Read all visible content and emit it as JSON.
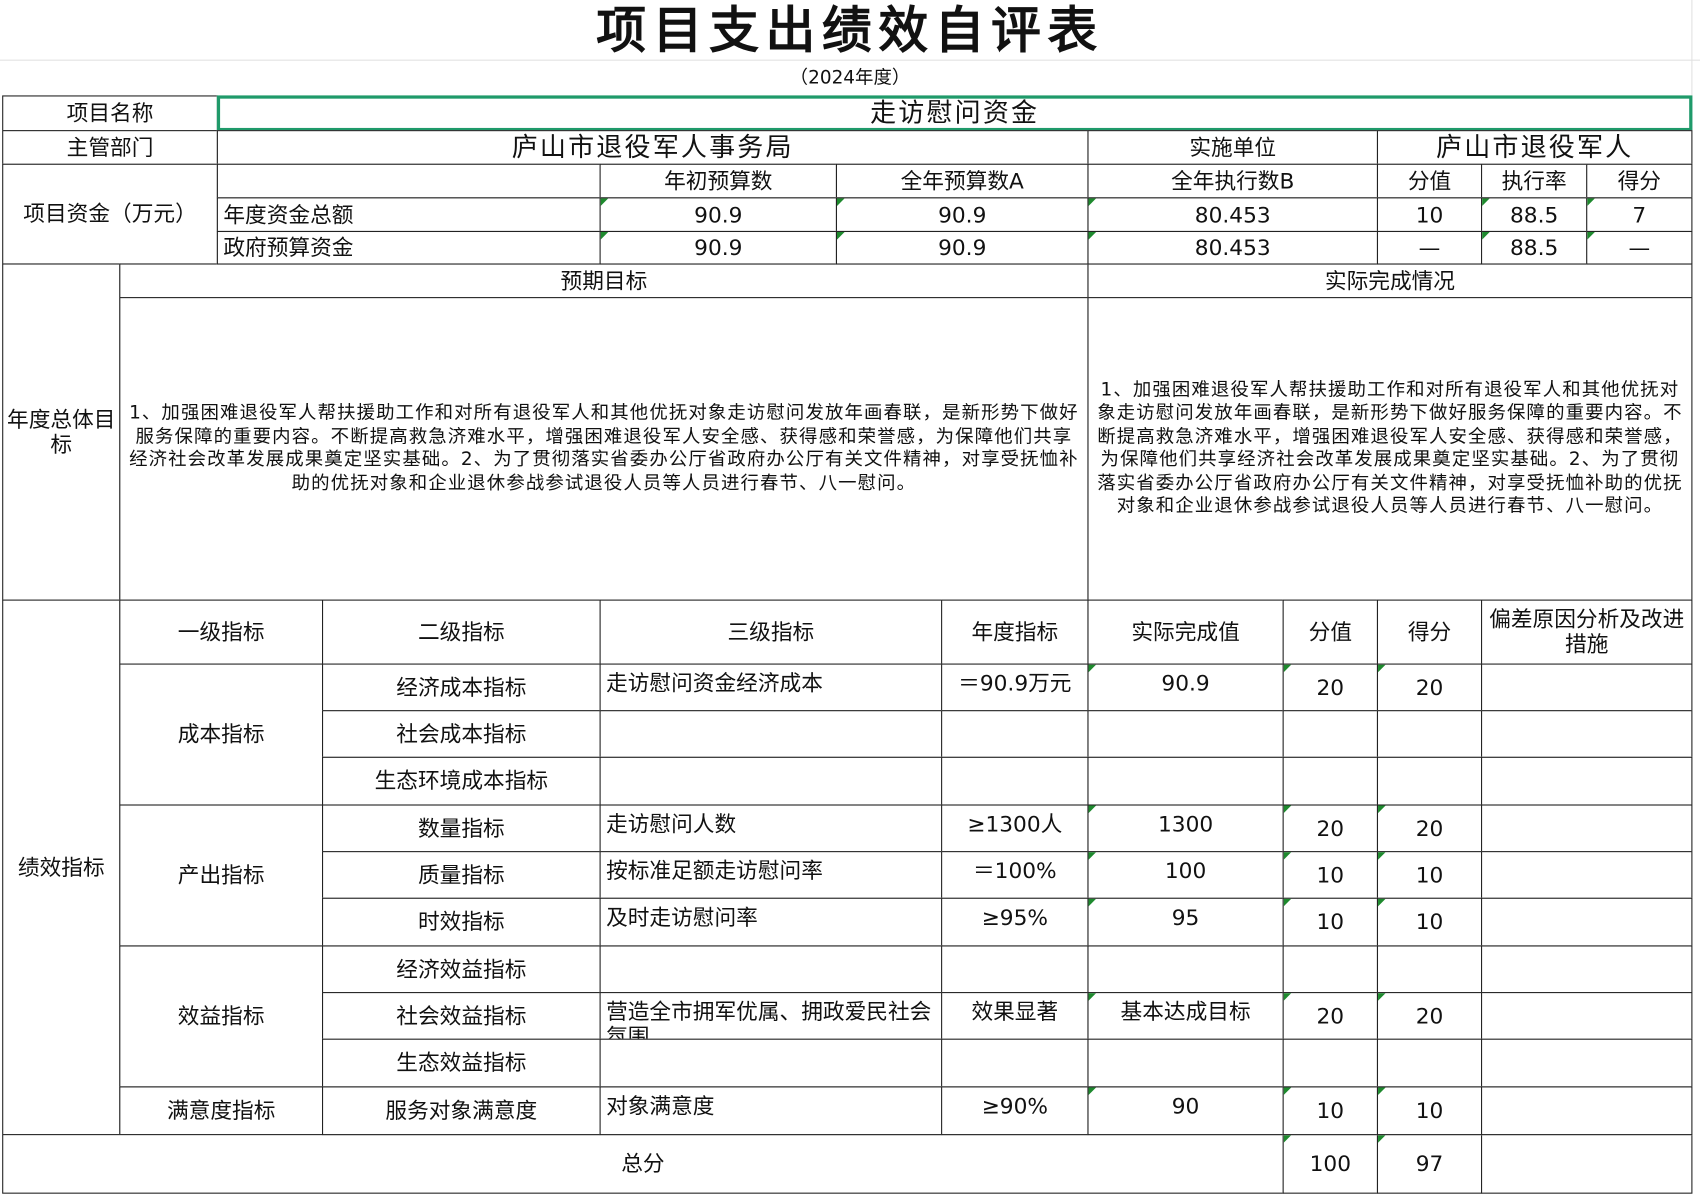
{
  "title": "项目支出绩效自评表",
  "subtitle": "（2024年度）",
  "project": {
    "name_label": "项目名称",
    "name": "走访慰问资金",
    "dept_label": "主管部门",
    "dept": "庐山市退役军人事务局",
    "impl_label": "实施单位",
    "impl": "庐山市退役军人"
  },
  "funds": {
    "label": "项目资金（万元）",
    "headers": [
      "年初预算数",
      "全年预算数A",
      "全年执行数B",
      "分值",
      "执行率",
      "得分"
    ],
    "rows": [
      {
        "name": "年度资金总额",
        "initial": "90.9",
        "annual": "90.9",
        "executed": "80.453",
        "weight": "10",
        "rate": "88.5",
        "score": "7"
      },
      {
        "name": "政府预算资金",
        "initial": "90.9",
        "annual": "90.9",
        "executed": "80.453",
        "weight": "—",
        "rate": "88.5",
        "score": "—"
      }
    ]
  },
  "goals": {
    "label": "年度总体目标",
    "expected_label": "预期目标",
    "actual_label": "实际完成情况",
    "expected": "1、加强困难退役军人帮扶援助工作和对所有退役军人和其他优抚对象走访慰问发放年画春联，是新形势下做好服务保障的重要内容。不断提高救急济难水平，增强困难退役军人安全感、获得感和荣誉感，为保障他们共享经济社会改革发展成果奠定坚实基础。2、为了贯彻落实省委办公厅省政府办公厅有关文件精神，对享受抚恤补助的优抚对象和企业退休参战参试退役人员等人员进行春节、八一慰问。",
    "actual": "1、加强困难退役军人帮扶援助工作和对所有退役军人和其他优抚对象走访慰问发放年画春联，是新形势下做好服务保障的重要内容。不断提高救急济难水平，增强困难退役军人安全感、获得感和荣誉感，为保障他们共享经济社会改革发展成果奠定坚实基础。2、为了贯彻落实省委办公厅省政府办公厅有关文件精神，对享受抚恤补助的优抚对象和企业退休参战参试退役人员等人员进行春节、八一慰问。"
  },
  "indicators": {
    "label": "绩效指标",
    "headers": [
      "一级指标",
      "二级指标",
      "三级指标",
      "年度指标",
      "实际完成值",
      "分值",
      "得分",
      "偏差原因分析及改进措施"
    ],
    "level1": [
      "成本指标",
      "产出指标",
      "效益指标",
      "满意度指标"
    ],
    "rows": [
      {
        "l2": "经济成本指标",
        "l3": "走访慰问资金经济成本",
        "target": "＝90.9万元",
        "actual": "90.9",
        "weight": "20",
        "score": "20",
        "note": ""
      },
      {
        "l2": "社会成本指标",
        "l3": "",
        "target": "",
        "actual": "",
        "weight": "",
        "score": "",
        "note": ""
      },
      {
        "l2": "生态环境成本指标",
        "l3": "",
        "target": "",
        "actual": "",
        "weight": "",
        "score": "",
        "note": ""
      },
      {
        "l2": "数量指标",
        "l3": "走访慰问人数",
        "target": "≥1300人",
        "actual": "1300",
        "weight": "20",
        "score": "20",
        "note": ""
      },
      {
        "l2": "质量指标",
        "l3": "按标准足额走访慰问率",
        "target": "＝100%",
        "actual": "100",
        "weight": "10",
        "score": "10",
        "note": ""
      },
      {
        "l2": "时效指标",
        "l3": "及时走访慰问率",
        "target": "≥95%",
        "actual": "95",
        "weight": "10",
        "score": "10",
        "note": ""
      },
      {
        "l2": "经济效益指标",
        "l3": "",
        "target": "",
        "actual": "",
        "weight": "",
        "score": "",
        "note": ""
      },
      {
        "l2": "社会效益指标",
        "l3": "营造全市拥军优属、拥政爱民社会氛围",
        "target": "效果显著",
        "actual": "基本达成目标",
        "weight": "20",
        "score": "20",
        "note": ""
      },
      {
        "l2": "生态效益指标",
        "l3": "",
        "target": "",
        "actual": "",
        "weight": "",
        "score": "",
        "note": ""
      },
      {
        "l2": "服务对象满意度",
        "l3": "对象满意度",
        "target": "≥90%",
        "actual": "90",
        "weight": "10",
        "score": "10",
        "note": ""
      }
    ],
    "total_label": "总分",
    "total_weight": "100",
    "total_score": "97"
  }
}
